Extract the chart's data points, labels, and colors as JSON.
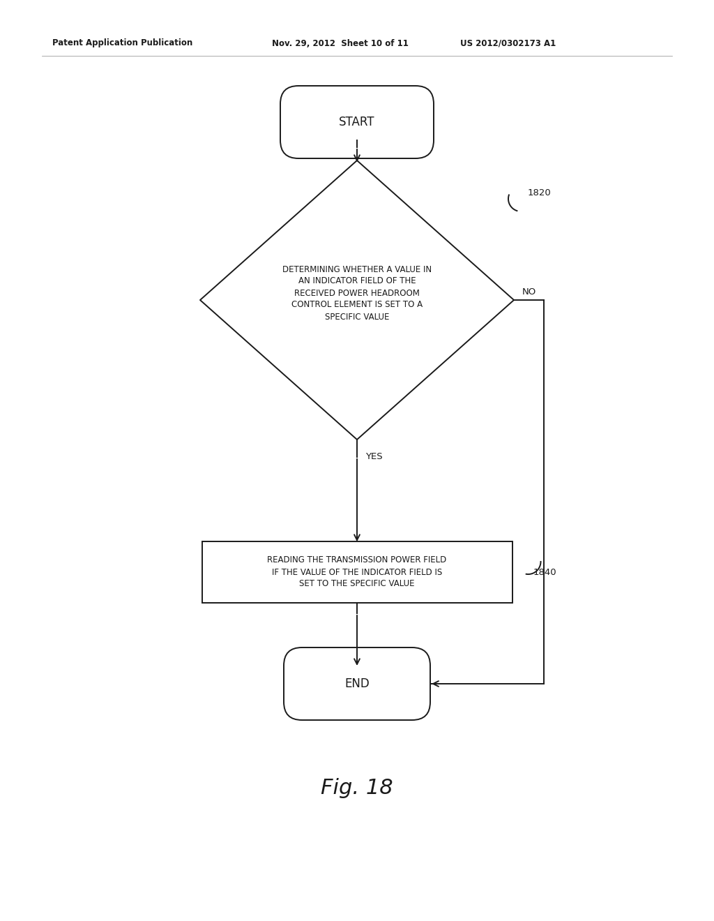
{
  "bg_color": "#ffffff",
  "header_left": "Patent Application Publication",
  "header_mid": "Nov. 29, 2012  Sheet 10 of 11",
  "header_right": "US 2012/0302173 A1",
  "fig_label": "Fig. 18",
  "start_label": "START",
  "end_label": "END",
  "diamond_label": "DETERMINING WHETHER A VALUE IN\nAN INDICATOR FIELD OF THE\nRECEIVED POWER HEADROOM\nCONTROL ELEMENT IS SET TO A\nSPECIFIC VALUE",
  "diamond_ref": "1820",
  "rect_label": "READING THE TRANSMISSION POWER FIELD\nIF THE VALUE OF THE INDICATOR FIELD IS\nSET TO THE SPECIFIC VALUE",
  "rect_ref": "1840",
  "yes_label": "YES",
  "no_label": "NO",
  "line_color": "#1a1a1a",
  "text_color": "#1a1a1a"
}
